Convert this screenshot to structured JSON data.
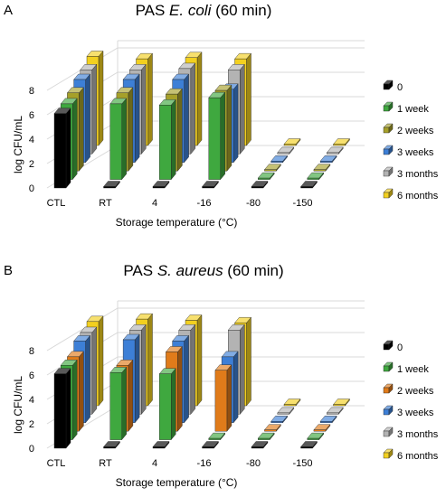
{
  "chart_data": [
    {
      "panel_label": "A",
      "type": "bar",
      "title_parts": [
        "PAS ",
        "E. coli",
        " (60 min)"
      ],
      "title_italic_index": 1,
      "xlabel": "Storage temperature (°C)",
      "ylabel": "log CFU/mL",
      "ylim": [
        0,
        8
      ],
      "yticks": [
        "0",
        "2",
        "4",
        "6",
        "8"
      ],
      "categories": [
        "CTL",
        "RT",
        "4",
        "-16",
        "-80",
        "-150"
      ],
      "series": [
        {
          "name": "0",
          "color": "#000000",
          "values": [
            6.1,
            0,
            0,
            0,
            0,
            0
          ]
        },
        {
          "name": "1 week",
          "color": "#3fa83f",
          "values": [
            6.2,
            6.2,
            6.1,
            6.7,
            0,
            0
          ]
        },
        {
          "name": "2 weeks",
          "color": "#a6a02a",
          "values": [
            6.4,
            6.4,
            6.3,
            6.6,
            0,
            0
          ]
        },
        {
          "name": "3 weeks",
          "color": "#3d7fd6",
          "values": [
            6.8,
            6.8,
            6.8,
            6.0,
            0,
            0
          ]
        },
        {
          "name": "3 months",
          "color": "#b3b3b3",
          "values": [
            6.9,
            6.9,
            7.0,
            6.9,
            0,
            0
          ]
        },
        {
          "name": "6 months",
          "color": "#f2d020",
          "values": [
            7.3,
            7.1,
            7.2,
            7.1,
            0,
            0
          ]
        }
      ]
    },
    {
      "panel_label": "B",
      "type": "bar",
      "title_parts": [
        "PAS ",
        "S. aureus",
        " (60 min)"
      ],
      "title_italic_index": 1,
      "xlabel": "Storage temperature (°C)",
      "ylabel": "log CFU/mL",
      "ylim": [
        0,
        8
      ],
      "yticks": [
        "0",
        "2",
        "4",
        "6",
        "8"
      ],
      "categories": [
        "CTL",
        "RT",
        "4",
        "-16",
        "-80",
        "-150"
      ],
      "series": [
        {
          "name": "0",
          "color": "#000000",
          "values": [
            6.1,
            0,
            0,
            0,
            0,
            0
          ]
        },
        {
          "name": "1 week",
          "color": "#3fa83f",
          "values": [
            6.1,
            5.5,
            5.4,
            0,
            0,
            0
          ]
        },
        {
          "name": "2 weeks",
          "color": "#e07b1a",
          "values": [
            6.1,
            5.4,
            6.5,
            5.0,
            0,
            0
          ]
        },
        {
          "name": "3 weeks",
          "color": "#3d7fd6",
          "values": [
            6.7,
            6.8,
            6.7,
            5.4,
            0,
            0
          ]
        },
        {
          "name": "3 months",
          "color": "#b3b3b3",
          "values": [
            6.7,
            6.9,
            6.9,
            6.9,
            0,
            0
          ]
        },
        {
          "name": "6 months",
          "color": "#f2d020",
          "values": [
            6.9,
            7.1,
            7.0,
            6.8,
            0,
            0
          ]
        }
      ]
    }
  ]
}
